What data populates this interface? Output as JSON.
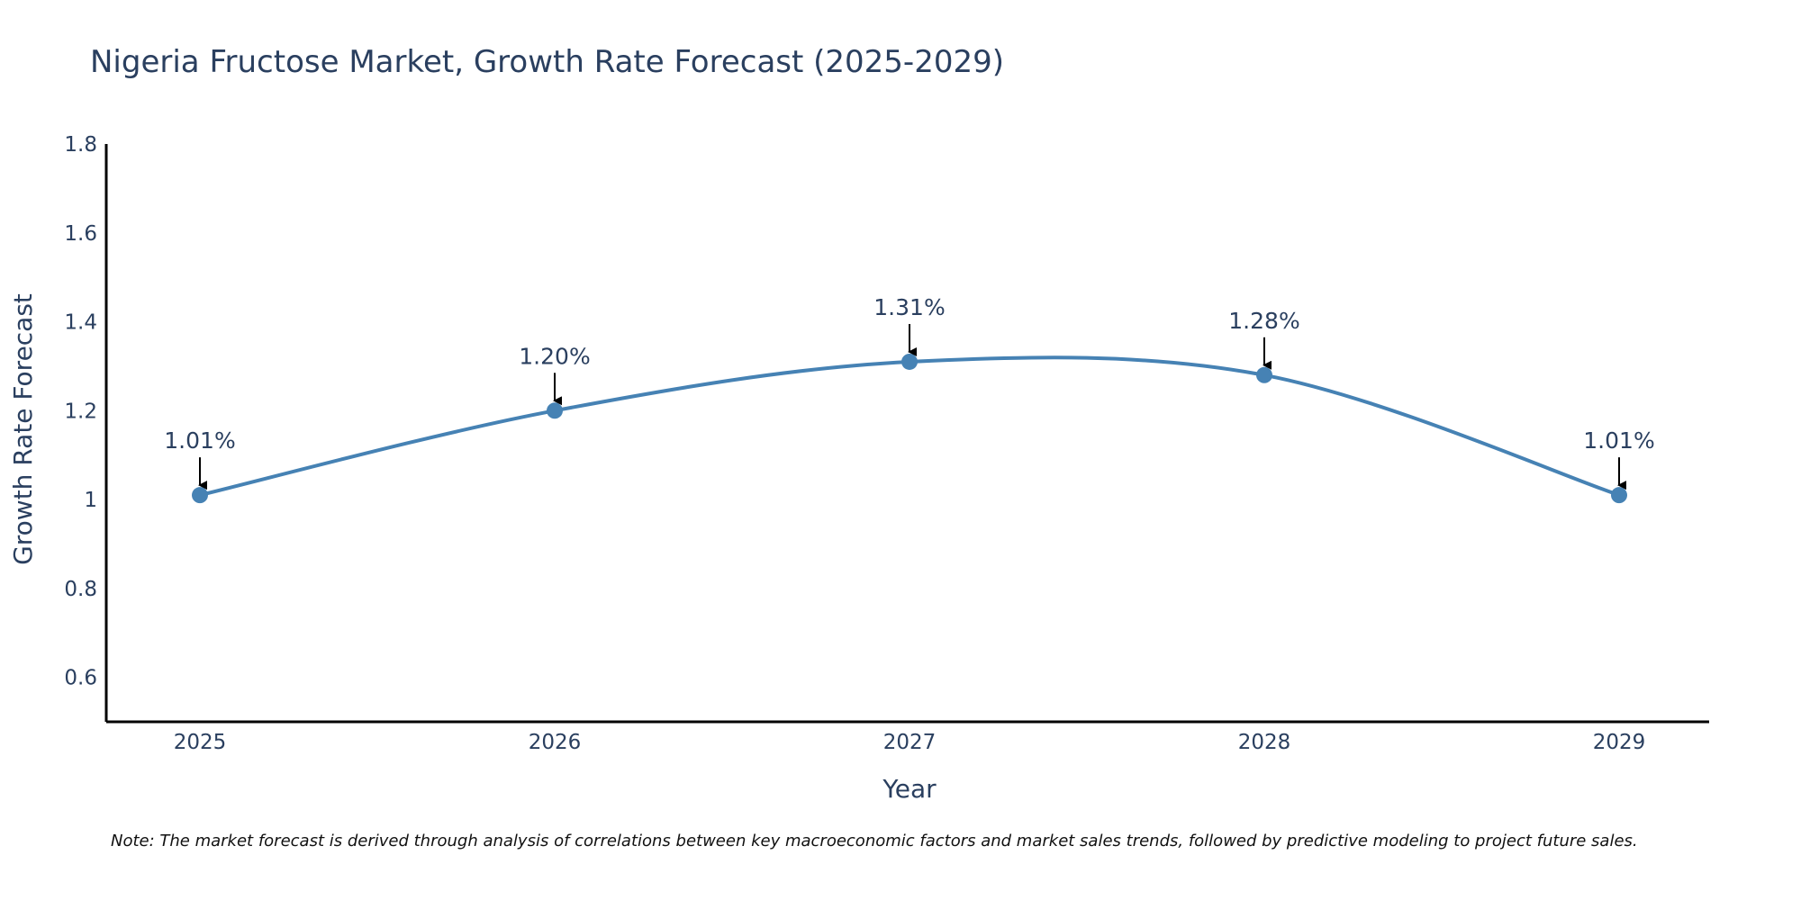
{
  "colors": {
    "line": "#4682b4",
    "axis": "#000000",
    "text": "#2a3f5f",
    "arrow": "#000000"
  },
  "chart_data": {
    "type": "line",
    "title": "Nigeria Fructose Market, Growth Rate Forecast (2025-2029)",
    "xlabel": "Year",
    "ylabel": "Growth Rate Forecast",
    "categories": [
      "2025",
      "2026",
      "2027",
      "2028",
      "2029"
    ],
    "series": [
      {
        "name": "Growth Rate Forecast",
        "values": [
          1.01,
          1.2,
          1.31,
          1.28,
          1.01
        ],
        "labels": [
          "1.01%",
          "1.20%",
          "1.31%",
          "1.28%",
          "1.01%"
        ]
      }
    ],
    "ylim": [
      0.5,
      1.8
    ],
    "yticks": [
      0.6,
      0.8,
      1,
      1.2,
      1.4,
      1.6,
      1.8
    ],
    "ytick_labels": [
      "0.6",
      "0.8",
      "1",
      "1.2",
      "1.4",
      "1.6",
      "1.8"
    ],
    "grid": false,
    "line_shape": "spline",
    "note": "Note: The market forecast is derived through analysis of correlations between key macroeconomic factors and market sales trends, followed by predictive modeling to project future sales."
  }
}
